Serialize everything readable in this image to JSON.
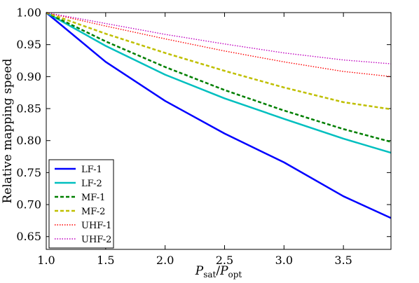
{
  "chart_data": {
    "type": "line",
    "title": "",
    "xlabel": {
      "base1": "P",
      "sub1": "sat",
      "slash": "/",
      "base2": "P",
      "sub2": "opt"
    },
    "ylabel": "Relative mapping speed",
    "xlim": [
      1.0,
      3.9
    ],
    "ylim": [
      0.63,
      1.0
    ],
    "x_ticks": [
      1.0,
      1.5,
      2.0,
      2.5,
      3.0,
      3.5
    ],
    "x_tick_labels": [
      "1.0",
      "1.5",
      "2.0",
      "2.5",
      "3.0",
      "3.5"
    ],
    "y_ticks": [
      0.65,
      0.7,
      0.75,
      0.8,
      0.85,
      0.9,
      0.95,
      1.0
    ],
    "y_tick_labels": [
      "0.65",
      "0.70",
      "0.75",
      "0.80",
      "0.85",
      "0.90",
      "0.95",
      "1.00"
    ],
    "grid": false,
    "legend_position": "bottom-left",
    "series": [
      {
        "name": "LF-1",
        "color": "#0000ff",
        "style": "solid",
        "x": [
          1.0,
          1.5,
          2.0,
          2.5,
          3.0,
          3.5,
          3.9
        ],
        "y": [
          1.0,
          0.923,
          0.862,
          0.811,
          0.766,
          0.713,
          0.679
        ]
      },
      {
        "name": "LF-2",
        "color": "#00bfbf",
        "style": "solid",
        "x": [
          1.0,
          1.5,
          2.0,
          2.5,
          3.0,
          3.5,
          3.9
        ],
        "y": [
          1.0,
          0.948,
          0.903,
          0.866,
          0.834,
          0.803,
          0.781
        ]
      },
      {
        "name": "MF-1",
        "color": "#007f00",
        "style": "dashed",
        "x": [
          1.0,
          1.5,
          2.0,
          2.5,
          3.0,
          3.5,
          3.9
        ],
        "y": [
          1.0,
          0.955,
          0.915,
          0.879,
          0.847,
          0.818,
          0.798
        ]
      },
      {
        "name": "MF-2",
        "color": "#bfbf00",
        "style": "dashed",
        "x": [
          1.0,
          1.5,
          2.0,
          2.5,
          3.0,
          3.5,
          3.9
        ],
        "y": [
          1.0,
          0.967,
          0.937,
          0.909,
          0.883,
          0.86,
          0.849
        ]
      },
      {
        "name": "UHF-1",
        "color": "#ff0000",
        "style": "dotted",
        "x": [
          1.0,
          1.5,
          2.0,
          2.5,
          3.0,
          3.5,
          3.9
        ],
        "y": [
          1.0,
          0.979,
          0.959,
          0.94,
          0.923,
          0.908,
          0.9
        ]
      },
      {
        "name": "UHF-2",
        "color": "#bf00bf",
        "style": "dotted",
        "x": [
          1.0,
          1.5,
          2.0,
          2.5,
          3.0,
          3.5,
          3.9
        ],
        "y": [
          1.0,
          0.983,
          0.966,
          0.951,
          0.937,
          0.926,
          0.92
        ]
      }
    ]
  }
}
